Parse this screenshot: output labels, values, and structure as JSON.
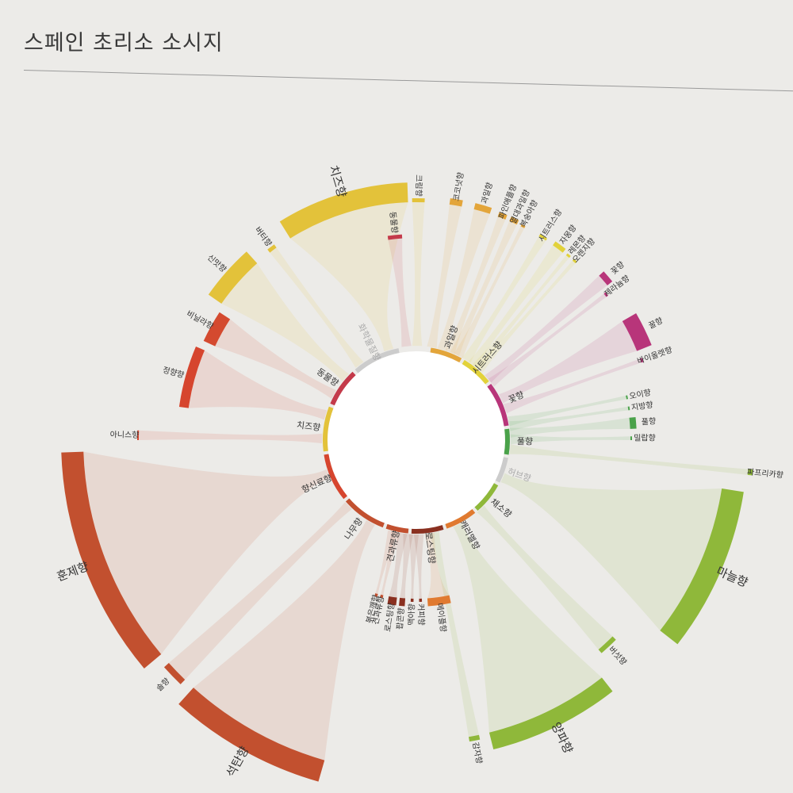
{
  "title": "스페인 초리소 소시지",
  "colors": {
    "cheese": "#e3c23a",
    "savory": "#d44a2f",
    "spice": "#d6452e",
    "wood": "#c2502f",
    "roast": "#8a3020",
    "caramel": "#e07a30",
    "vegetable": "#8fb83a",
    "floral": "#b8357a",
    "fruity": "#e3a53a",
    "citrus": "#e2d23a",
    "green": "#4aa24a",
    "herb": "#cccccc",
    "animal": "#c43a4a",
    "dairy": "#cccccc"
  },
  "categories": [
    {
      "name": "과일향",
      "key": "fruity"
    },
    {
      "name": "시트러스향",
      "key": "citrus"
    },
    {
      "name": "꽃향",
      "key": "floral"
    },
    {
      "name": "풀향",
      "key": "green"
    },
    {
      "name": "허브향",
      "key": "herb"
    },
    {
      "name": "채소향",
      "key": "vegetable"
    },
    {
      "name": "캐러멜향",
      "key": "caramel"
    },
    {
      "name": "로스팅향",
      "key": "roast"
    },
    {
      "name": "견과류향",
      "key": "wood"
    },
    {
      "name": "나무향",
      "key": "wood"
    },
    {
      "name": "향신료향",
      "key": "spice"
    },
    {
      "name": "치즈향",
      "key": "cheese"
    },
    {
      "name": "동물향",
      "key": "animal"
    },
    {
      "name": "화학물질향",
      "key": "dairy"
    }
  ],
  "outer_labels": [
    {
      "label": "치즈향",
      "key": "cheese"
    },
    {
      "label": "크림향",
      "key": "cheese"
    },
    {
      "label": "버터향",
      "key": "cheese"
    },
    {
      "label": "신맛향",
      "key": "cheese"
    },
    {
      "label": "비닐라향",
      "key": "savory"
    },
    {
      "label": "정향향",
      "key": "spice"
    },
    {
      "label": "아니스향",
      "key": "spice"
    },
    {
      "label": "훈제향",
      "key": "wood"
    },
    {
      "label": "솔향",
      "key": "wood"
    },
    {
      "label": "석탄향",
      "key": "wood"
    },
    {
      "label": "동물향",
      "key": "animal"
    },
    {
      "label": "코코넛향",
      "key": "fruity"
    },
    {
      "label": "과일향",
      "key": "fruity"
    },
    {
      "label": "파인애플향",
      "key": "fruity"
    },
    {
      "label": "열대과일향",
      "key": "fruity"
    },
    {
      "label": "복숭아향",
      "key": "fruity"
    },
    {
      "label": "시트러스향",
      "key": "citrus"
    },
    {
      "label": "자몽향",
      "key": "citrus"
    },
    {
      "label": "레몬향",
      "key": "citrus"
    },
    {
      "label": "오렌지향",
      "key": "citrus"
    },
    {
      "label": "꽃향",
      "key": "floral"
    },
    {
      "label": "제라늄향",
      "key": "floral"
    },
    {
      "label": "꿀향",
      "key": "floral"
    },
    {
      "label": "바이올렛향",
      "key": "floral"
    },
    {
      "label": "오이향",
      "key": "green"
    },
    {
      "label": "지방향",
      "key": "green"
    },
    {
      "label": "풀향",
      "key": "green"
    },
    {
      "label": "밀랍향",
      "key": "green"
    },
    {
      "label": "파프리카향",
      "key": "vegetable"
    },
    {
      "label": "마늘향",
      "key": "vegetable"
    },
    {
      "label": "버섯향",
      "key": "vegetable"
    },
    {
      "label": "양파향",
      "key": "vegetable"
    },
    {
      "label": "감자향",
      "key": "vegetable"
    },
    {
      "label": "메이플향",
      "key": "caramel"
    },
    {
      "label": "커피향",
      "key": "roast"
    },
    {
      "label": "맥아향",
      "key": "roast"
    },
    {
      "label": "팝콘향",
      "key": "roast"
    },
    {
      "label": "로스팅향",
      "key": "roast"
    },
    {
      "label": "견과류향",
      "key": "wood"
    },
    {
      "label": "볶은깨향",
      "key": "wood"
    }
  ]
}
